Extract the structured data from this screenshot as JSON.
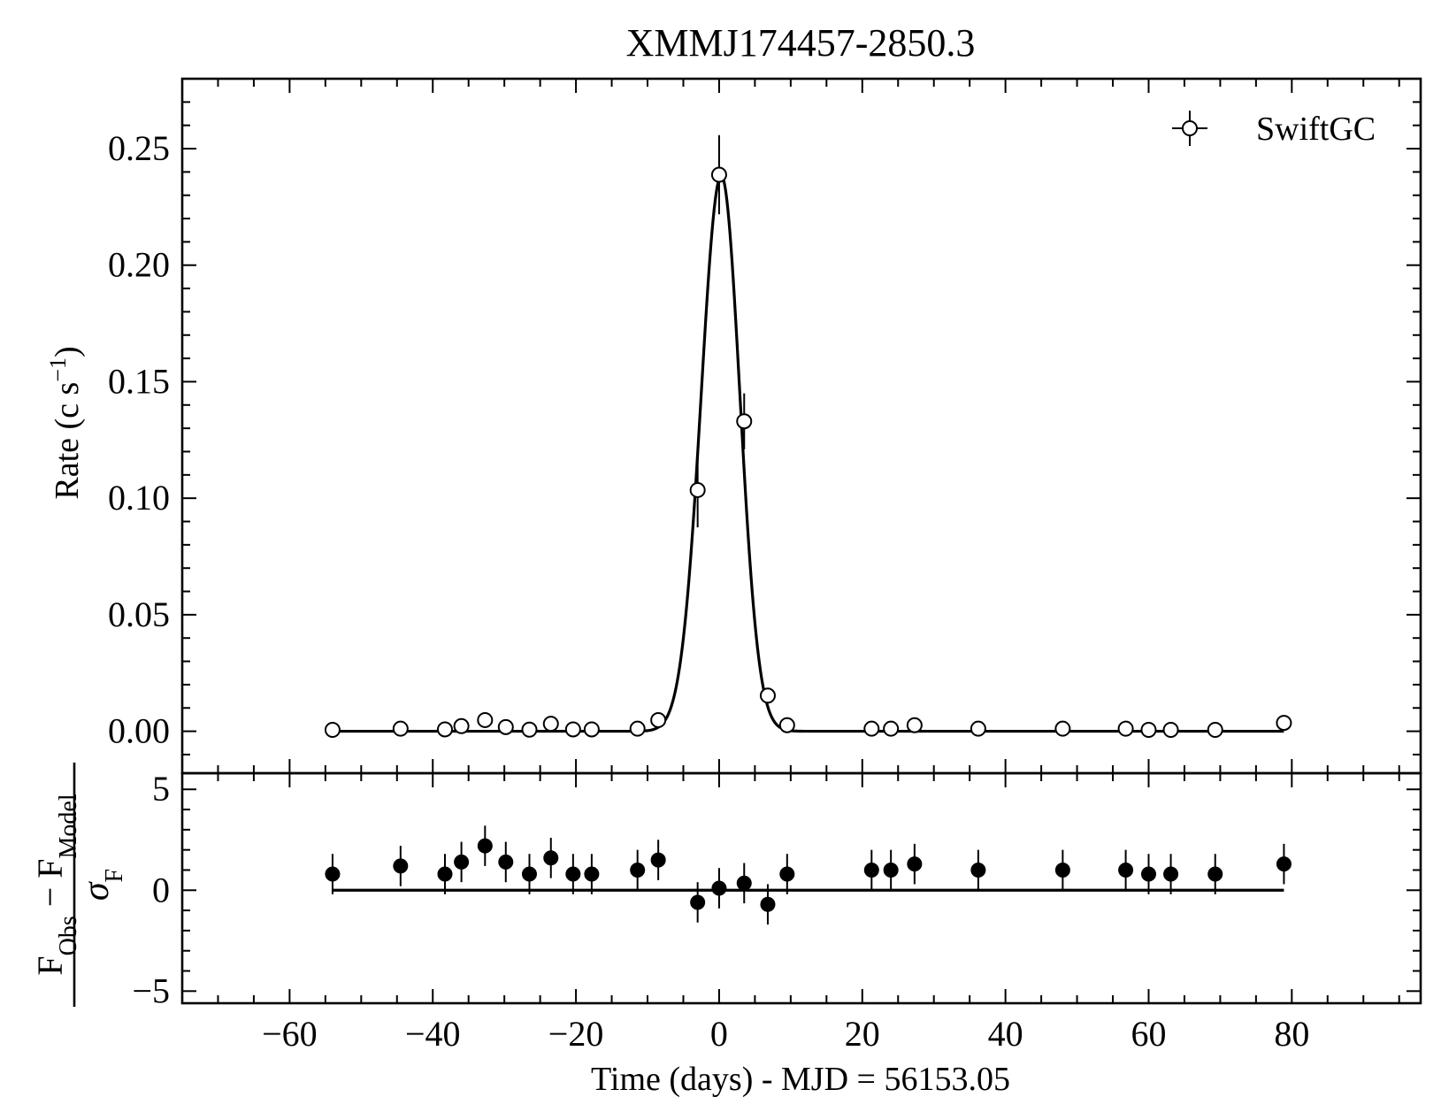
{
  "chart_data": [
    {
      "panel": "top",
      "type": "scatter",
      "title": "XMMJ174457-2850.3",
      "ylabel": "Rate (c s",
      "ylabel_exp": "−1",
      "ylabel_close": ")",
      "xlim": [
        -75,
        98
      ],
      "ylim": [
        -0.018,
        0.28
      ],
      "yticks": [
        0.0,
        0.05,
        0.1,
        0.15,
        0.2,
        0.25
      ],
      "ytick_labels": [
        "0.00",
        "0.05",
        "0.10",
        "0.15",
        "0.20",
        "0.25"
      ],
      "legend": {
        "label": "SwiftGC",
        "position": "top-right"
      },
      "series": [
        {
          "name": "SwiftGC",
          "marker": "open-circle",
          "points": [
            {
              "x": -54.0,
              "y": 0.0006,
              "err": 0.002
            },
            {
              "x": -44.5,
              "y": 0.0011,
              "err": 0.002
            },
            {
              "x": -38.3,
              "y": 0.0008,
              "err": 0.002
            },
            {
              "x": -36.0,
              "y": 0.0022,
              "err": 0.003
            },
            {
              "x": -32.7,
              "y": 0.0048,
              "err": 0.003
            },
            {
              "x": -29.8,
              "y": 0.0018,
              "err": 0.002
            },
            {
              "x": -26.5,
              "y": 0.0007,
              "err": 0.002
            },
            {
              "x": -23.5,
              "y": 0.0032,
              "err": 0.003
            },
            {
              "x": -20.4,
              "y": 0.0008,
              "err": 0.002
            },
            {
              "x": -17.8,
              "y": 0.0008,
              "err": 0.002
            },
            {
              "x": -11.4,
              "y": 0.0011,
              "err": 0.002
            },
            {
              "x": -8.5,
              "y": 0.0048,
              "err": 0.003
            },
            {
              "x": -3.0,
              "y": 0.1035,
              "err": 0.016
            },
            {
              "x": 0.0,
              "y": 0.2388,
              "err": 0.017
            },
            {
              "x": 3.5,
              "y": 0.133,
              "err": 0.012
            },
            {
              "x": 6.8,
              "y": 0.0153,
              "err": 0.003
            },
            {
              "x": 9.5,
              "y": 0.0026,
              "err": 0.002
            },
            {
              "x": 21.3,
              "y": 0.0011,
              "err": 0.002
            },
            {
              "x": 24.0,
              "y": 0.0011,
              "err": 0.002
            },
            {
              "x": 27.3,
              "y": 0.0026,
              "err": 0.003
            },
            {
              "x": 36.2,
              "y": 0.0011,
              "err": 0.002
            },
            {
              "x": 48.0,
              "y": 0.0011,
              "err": 0.002
            },
            {
              "x": 56.8,
              "y": 0.0011,
              "err": 0.002
            },
            {
              "x": 60.0,
              "y": 0.0006,
              "err": 0.002
            },
            {
              "x": 63.1,
              "y": 0.0006,
              "err": 0.002
            },
            {
              "x": 69.3,
              "y": 0.0006,
              "err": 0.002
            },
            {
              "x": 78.9,
              "y": 0.0036,
              "err": 0.003
            }
          ]
        }
      ],
      "model": {
        "type": "asymmetric-gaussian",
        "peak_x": 0.3,
        "peak_y": 0.2385,
        "sigma_rise": 2.8,
        "sigma_decay": 2.6,
        "x_range": [
          -54.0,
          78.9
        ]
      }
    },
    {
      "panel": "bottom",
      "type": "scatter",
      "ylabel_num_a": "F",
      "ylabel_num_a_sub": "Obs",
      "ylabel_minus": "−",
      "ylabel_num_b": "F",
      "ylabel_num_b_sub": "Model",
      "ylabel_den": "σ",
      "ylabel_den_sub": "F",
      "xlabel": "Time (days) - MJD = 56153.05",
      "xlim": [
        -75,
        98
      ],
      "ylim": [
        -5.6,
        5.8
      ],
      "xticks": [
        -60,
        -40,
        -20,
        0,
        20,
        40,
        60,
        80
      ],
      "xtick_labels": [
        "−60",
        "−40",
        "−20",
        "0",
        "20",
        "40",
        "60",
        "80"
      ],
      "yticks": [
        -5,
        0,
        5
      ],
      "ytick_labels": [
        "−5",
        "0",
        "5"
      ],
      "zero_line_range": [
        -54.0,
        78.9
      ],
      "series": [
        {
          "name": "residuals",
          "marker": "filled-circle",
          "points": [
            {
              "x": -54.0,
              "y": 0.8,
              "err": 1.0
            },
            {
              "x": -44.5,
              "y": 1.2,
              "err": 1.0
            },
            {
              "x": -38.3,
              "y": 0.8,
              "err": 1.0
            },
            {
              "x": -36.0,
              "y": 1.4,
              "err": 1.0
            },
            {
              "x": -32.7,
              "y": 2.2,
              "err": 1.0
            },
            {
              "x": -29.8,
              "y": 1.4,
              "err": 1.0
            },
            {
              "x": -26.5,
              "y": 0.8,
              "err": 1.0
            },
            {
              "x": -23.5,
              "y": 1.6,
              "err": 1.0
            },
            {
              "x": -20.4,
              "y": 0.8,
              "err": 1.0
            },
            {
              "x": -17.8,
              "y": 0.8,
              "err": 1.0
            },
            {
              "x": -11.4,
              "y": 1.0,
              "err": 1.0
            },
            {
              "x": -8.5,
              "y": 1.5,
              "err": 1.0
            },
            {
              "x": -3.0,
              "y": -0.6,
              "err": 1.0
            },
            {
              "x": 0.0,
              "y": 0.1,
              "err": 1.0
            },
            {
              "x": 3.5,
              "y": 0.35,
              "err": 1.0
            },
            {
              "x": 6.8,
              "y": -0.7,
              "err": 1.0
            },
            {
              "x": 9.5,
              "y": 0.8,
              "err": 1.0
            },
            {
              "x": 21.3,
              "y": 1.0,
              "err": 1.0
            },
            {
              "x": 24.0,
              "y": 1.0,
              "err": 1.0
            },
            {
              "x": 27.3,
              "y": 1.3,
              "err": 1.0
            },
            {
              "x": 36.2,
              "y": 1.0,
              "err": 1.0
            },
            {
              "x": 48.0,
              "y": 1.0,
              "err": 1.0
            },
            {
              "x": 56.8,
              "y": 1.0,
              "err": 1.0
            },
            {
              "x": 60.0,
              "y": 0.8,
              "err": 1.0
            },
            {
              "x": 63.1,
              "y": 0.8,
              "err": 1.0
            },
            {
              "x": 69.3,
              "y": 0.8,
              "err": 1.0
            },
            {
              "x": 78.9,
              "y": 1.3,
              "err": 1.0
            }
          ]
        }
      ]
    }
  ]
}
